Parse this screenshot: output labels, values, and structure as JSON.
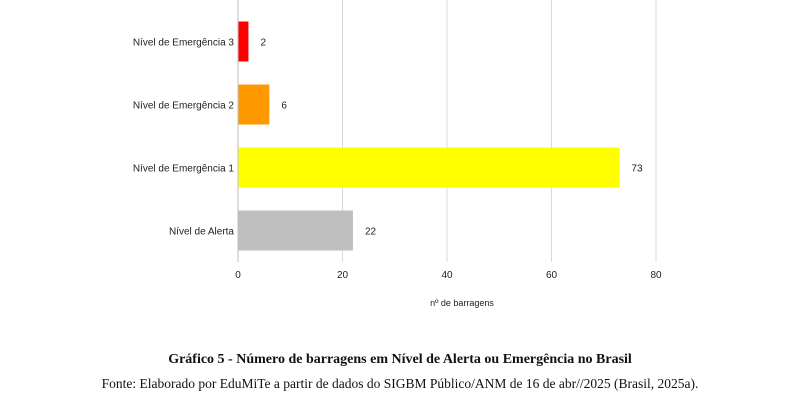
{
  "chart_data": {
    "type": "bar",
    "orientation": "horizontal",
    "categories": [
      "Nível de Emergência 3",
      "Nível de Emergência 2",
      "Nível de Emergência 1",
      "Nível de Alerta"
    ],
    "values": [
      2,
      6,
      73,
      22
    ],
    "colors": [
      "#ff0000",
      "#ff9900",
      "#ffff00",
      "#bfbfbf"
    ],
    "xlabel": "nº de barragens",
    "xlim": [
      0,
      80
    ],
    "xticks": [
      0,
      20,
      40,
      60,
      80
    ],
    "grid": "vertical",
    "legend": "none"
  },
  "caption": {
    "title": "Gráfico 5 - Número de barragens em Nível de Alerta ou Emergência no Brasil",
    "source": "Fonte: Elaborado por EduMiTe a partir de dados do SIGBM Público/ANM de 16 de abr//2025 (Brasil, 2025a)."
  }
}
